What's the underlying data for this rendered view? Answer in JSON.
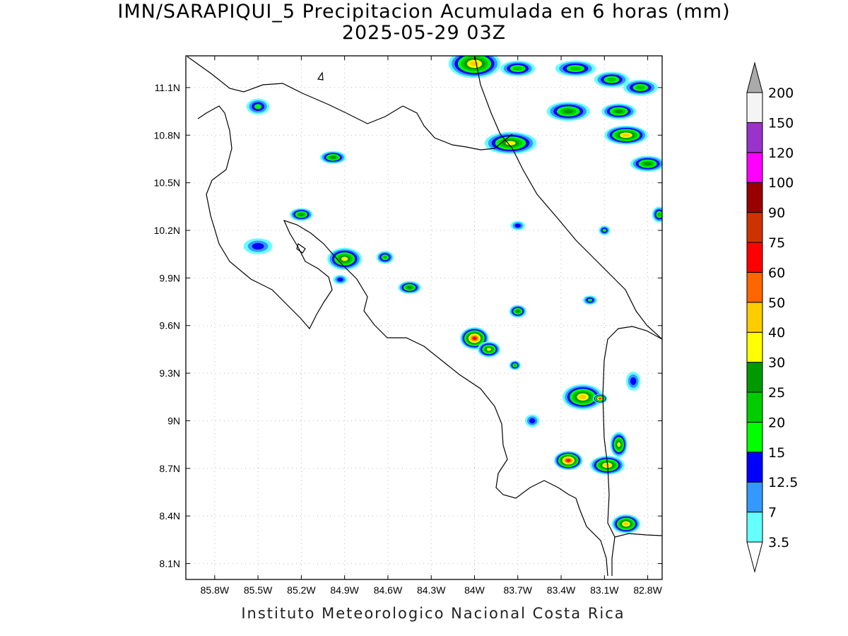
{
  "title": {
    "line1": "IMN/SARAPIQUI_5 Precipitacion Acumulada en 6 horas (mm)",
    "line2": "2025-05-29 03Z"
  },
  "footer": "Instituto Meteorologico Nacional Costa Rica",
  "map": {
    "lon_range": [
      -86.0,
      -82.7
    ],
    "lat_range": [
      8.0,
      11.3
    ],
    "lon_ticks": [
      {
        "value": -85.8,
        "label": "85.8W"
      },
      {
        "value": -85.5,
        "label": "85.5W"
      },
      {
        "value": -85.2,
        "label": "85.2W"
      },
      {
        "value": -84.9,
        "label": "84.9W"
      },
      {
        "value": -84.6,
        "label": "84.6W"
      },
      {
        "value": -84.3,
        "label": "84.3W"
      },
      {
        "value": -84.0,
        "label": "84W"
      },
      {
        "value": -83.7,
        "label": "83.7W"
      },
      {
        "value": -83.4,
        "label": "83.4W"
      },
      {
        "value": -83.1,
        "label": "83.1W"
      },
      {
        "value": -82.8,
        "label": "82.8W"
      }
    ],
    "lat_ticks": [
      {
        "value": 8.1,
        "label": "8.1N"
      },
      {
        "value": 8.4,
        "label": "8.4N"
      },
      {
        "value": 8.7,
        "label": "8.7N"
      },
      {
        "value": 9.0,
        "label": "9N"
      },
      {
        "value": 9.3,
        "label": "9.3N"
      },
      {
        "value": 9.6,
        "label": "9.6N"
      },
      {
        "value": 9.9,
        "label": "9.9N"
      },
      {
        "value": 10.2,
        "label": "10.2N"
      },
      {
        "value": 10.5,
        "label": "10.5N"
      },
      {
        "value": 10.8,
        "label": "10.8N"
      },
      {
        "value": 11.1,
        "label": "11.1N"
      }
    ],
    "grid": true
  },
  "colorbar": {
    "units": "mm",
    "levels": [
      {
        "label": "3.5",
        "color": "#66ffff"
      },
      {
        "label": "7",
        "color": "#3399ff"
      },
      {
        "label": "12.5",
        "color": "#0000ff"
      },
      {
        "label": "15",
        "color": "#00ff00"
      },
      {
        "label": "20",
        "color": "#00cc00"
      },
      {
        "label": "25",
        "color": "#009900"
      },
      {
        "label": "30",
        "color": "#ffff00"
      },
      {
        "label": "40",
        "color": "#ffcc00"
      },
      {
        "label": "50",
        "color": "#ff6600"
      },
      {
        "label": "60",
        "color": "#ff0000"
      },
      {
        "label": "75",
        "color": "#cc3300"
      },
      {
        "label": "90",
        "color": "#990000"
      },
      {
        "label": "100",
        "color": "#ff00ff"
      },
      {
        "label": "120",
        "color": "#9933cc"
      },
      {
        "label": "150",
        "color": "#f4f4f4"
      },
      {
        "label": "200",
        "color": "#aaaaaa"
      }
    ]
  },
  "precip_cells": [
    {
      "lon": -84.0,
      "lat": 11.25,
      "rx": 0.18,
      "ry": 0.09,
      "level": 7
    },
    {
      "lon": -83.7,
      "lat": 11.22,
      "rx": 0.12,
      "ry": 0.05,
      "level": 4
    },
    {
      "lon": -83.3,
      "lat": 11.22,
      "rx": 0.14,
      "ry": 0.05,
      "level": 4
    },
    {
      "lon": -83.05,
      "lat": 11.15,
      "rx": 0.12,
      "ry": 0.05,
      "level": 4
    },
    {
      "lon": -82.85,
      "lat": 11.1,
      "rx": 0.12,
      "ry": 0.05,
      "level": 4
    },
    {
      "lon": -83.35,
      "lat": 10.95,
      "rx": 0.15,
      "ry": 0.06,
      "level": 5
    },
    {
      "lon": -83.0,
      "lat": 10.95,
      "rx": 0.12,
      "ry": 0.05,
      "level": 5
    },
    {
      "lon": -82.95,
      "lat": 10.8,
      "rx": 0.15,
      "ry": 0.06,
      "level": 7
    },
    {
      "lon": -82.8,
      "lat": 10.62,
      "rx": 0.12,
      "ry": 0.05,
      "level": 5
    },
    {
      "lon": -83.75,
      "lat": 10.75,
      "rx": 0.18,
      "ry": 0.07,
      "level": 6
    },
    {
      "lon": -85.5,
      "lat": 10.98,
      "rx": 0.08,
      "ry": 0.05,
      "level": 3
    },
    {
      "lon": -84.98,
      "lat": 10.66,
      "rx": 0.09,
      "ry": 0.04,
      "level": 5
    },
    {
      "lon": -85.5,
      "lat": 10.1,
      "rx": 0.1,
      "ry": 0.05,
      "level": 2
    },
    {
      "lon": -85.2,
      "lat": 10.3,
      "rx": 0.08,
      "ry": 0.04,
      "level": 5
    },
    {
      "lon": -84.9,
      "lat": 10.02,
      "rx": 0.12,
      "ry": 0.07,
      "level": 6
    },
    {
      "lon": -84.62,
      "lat": 10.03,
      "rx": 0.06,
      "ry": 0.04,
      "level": 4
    },
    {
      "lon": -84.45,
      "lat": 9.84,
      "rx": 0.08,
      "ry": 0.04,
      "level": 5
    },
    {
      "lon": -84.93,
      "lat": 9.89,
      "rx": 0.05,
      "ry": 0.03,
      "level": 2
    },
    {
      "lon": -83.7,
      "lat": 10.23,
      "rx": 0.05,
      "ry": 0.03,
      "level": 2
    },
    {
      "lon": -83.1,
      "lat": 10.2,
      "rx": 0.04,
      "ry": 0.03,
      "level": 3
    },
    {
      "lon": -83.7,
      "lat": 9.69,
      "rx": 0.06,
      "ry": 0.04,
      "level": 5
    },
    {
      "lon": -83.2,
      "lat": 9.76,
      "rx": 0.05,
      "ry": 0.03,
      "level": 3
    },
    {
      "lon": -84.0,
      "lat": 9.52,
      "rx": 0.1,
      "ry": 0.07,
      "level": 9
    },
    {
      "lon": -83.9,
      "lat": 9.45,
      "rx": 0.08,
      "ry": 0.05,
      "level": 6
    },
    {
      "lon": -83.72,
      "lat": 9.35,
      "rx": 0.04,
      "ry": 0.03,
      "level": 4
    },
    {
      "lon": -83.25,
      "lat": 9.15,
      "rx": 0.14,
      "ry": 0.08,
      "level": 7
    },
    {
      "lon": -83.13,
      "lat": 9.14,
      "rx": 0.05,
      "ry": 0.03,
      "level": 9
    },
    {
      "lon": -82.9,
      "lat": 9.25,
      "rx": 0.05,
      "ry": 0.06,
      "level": 2
    },
    {
      "lon": -83.35,
      "lat": 8.75,
      "rx": 0.1,
      "ry": 0.06,
      "level": 9
    },
    {
      "lon": -83.08,
      "lat": 8.72,
      "rx": 0.12,
      "ry": 0.06,
      "level": 7
    },
    {
      "lon": -83.0,
      "lat": 8.85,
      "rx": 0.06,
      "ry": 0.08,
      "level": 6
    },
    {
      "lon": -82.95,
      "lat": 8.35,
      "rx": 0.1,
      "ry": 0.06,
      "level": 7
    },
    {
      "lon": -82.72,
      "lat": 10.3,
      "rx": 0.05,
      "ry": 0.05,
      "level": 4
    },
    {
      "lon": -83.6,
      "lat": 9.0,
      "rx": 0.05,
      "ry": 0.04,
      "level": 2
    }
  ]
}
